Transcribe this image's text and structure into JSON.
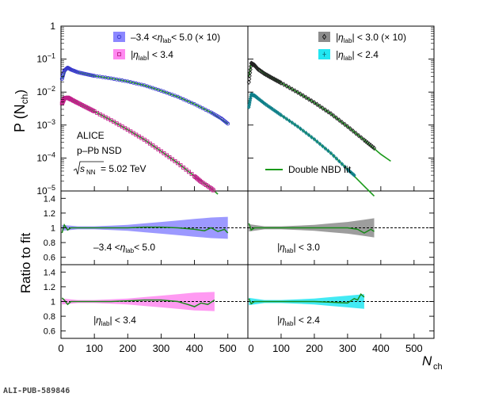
{
  "chart_data": [
    {
      "type": "scatter",
      "panel": "top-left",
      "ylabel": "P (N",
      "ylabel_sub": "ch",
      "yscale": "log",
      "ylim": [
        1e-05,
        1
      ],
      "xlim": [
        0,
        560
      ],
      "annotations": [
        "ALICE",
        "p–Pb NSD",
        "s",
        "NN",
        "= 5.02 TeV"
      ],
      "legend": [
        "–3.4 <",
        "η",
        "lab",
        "< 5.0 (× 10)",
        "|η",
        "lab",
        "| < 3.4"
      ],
      "series": [
        {
          "name": "–3.4 < η_lab < 5.0 (× 10)",
          "color": "#3a3acd",
          "band_color": "#8b87ff",
          "marker": "circle",
          "x": [
            3,
            10,
            20,
            30,
            50,
            75,
            100,
            150,
            200,
            250,
            300,
            350,
            400,
            450,
            480,
            500
          ],
          "y": [
            0.025,
            0.045,
            0.055,
            0.048,
            0.04,
            0.035,
            0.031,
            0.026,
            0.021,
            0.016,
            0.011,
            0.0072,
            0.0043,
            0.0024,
            0.0016,
            0.0011
          ]
        },
        {
          "name": "|η_lab| < 3.4",
          "color": "#c0208a",
          "band_color": "#ff88f0",
          "marker": "square",
          "x": [
            3,
            10,
            20,
            30,
            50,
            75,
            100,
            150,
            200,
            250,
            300,
            350,
            400,
            420,
            450,
            470
          ],
          "y": [
            0.0045,
            0.0065,
            0.0068,
            0.006,
            0.0047,
            0.0035,
            0.0026,
            0.0014,
            0.00072,
            0.00036,
            0.00016,
            7e-05,
            2.8e-05,
            1.9e-05,
            1.2e-05,
            8e-06
          ]
        }
      ],
      "fit": {
        "name": "Double NBD fit",
        "color": "#1a9a1a",
        "series": [
          {
            "x": [
              3,
              20,
              50,
              100,
              150,
              200,
              250,
              300,
              350,
              400,
              450,
              500
            ],
            "y": [
              0.026,
              0.055,
              0.04,
              0.031,
              0.026,
              0.021,
              0.016,
              0.011,
              0.0072,
              0.0043,
              0.0024,
              0.0011
            ]
          },
          {
            "x": [
              3,
              20,
              50,
              100,
              150,
              200,
              250,
              300,
              350,
              400,
              450,
              470
            ],
            "y": [
              0.0046,
              0.0068,
              0.0047,
              0.0026,
              0.0014,
              0.00072,
              0.00036,
              0.00016,
              7e-05,
              2.8e-05,
              1.2e-05,
              8e-06
            ]
          }
        ]
      }
    },
    {
      "type": "scatter",
      "panel": "top-right",
      "yscale": "log",
      "ylim": [
        1e-05,
        1
      ],
      "xlim": [
        0,
        560
      ],
      "legend": [
        "|η",
        "lab",
        "| < 3.0 (× 10)",
        "|η",
        "lab",
        "| < 2.4"
      ],
      "fit_legend": "Double NBD fit",
      "series": [
        {
          "name": "|η_lab| < 3.0 (× 10)",
          "color": "#222222",
          "band_color": "#8c8c8c",
          "marker": "diamond",
          "x": [
            3,
            10,
            20,
            30,
            50,
            75,
            100,
            150,
            200,
            250,
            300,
            350,
            380
          ],
          "y": [
            0.02,
            0.075,
            0.065,
            0.05,
            0.036,
            0.026,
            0.019,
            0.0098,
            0.0048,
            0.0022,
            0.0009,
            0.00035,
            0.0002
          ]
        },
        {
          "name": "|η_lab| < 2.4",
          "color": "#0e7f8a",
          "band_color": "#22e6f2",
          "marker": "cross",
          "x": [
            3,
            10,
            20,
            30,
            50,
            75,
            100,
            150,
            200,
            250,
            300,
            320
          ],
          "y": [
            0.0035,
            0.0085,
            0.0078,
            0.0065,
            0.0045,
            0.003,
            0.002,
            0.0009,
            0.00037,
            0.00014,
            4.5e-05,
            3e-05
          ]
        }
      ],
      "fit": {
        "name": "Double NBD fit",
        "color": "#1a9a1a",
        "series": [
          {
            "x": [
              3,
              10,
              20,
              50,
              100,
              150,
              200,
              250,
              300,
              350,
              400,
              430
            ],
            "y": [
              0.03,
              0.075,
              0.065,
              0.036,
              0.019,
              0.0098,
              0.0048,
              0.0022,
              0.0009,
              0.00035,
              0.00013,
              8e-05
            ]
          },
          {
            "x": [
              3,
              10,
              20,
              50,
              100,
              150,
              200,
              250,
              300,
              350,
              380
            ],
            "y": [
              0.0045,
              0.0085,
              0.0078,
              0.0045,
              0.002,
              0.0009,
              0.00037,
              0.00014,
              4.5e-05,
              1.4e-05,
              7e-06
            ]
          }
        ]
      }
    },
    {
      "type": "line",
      "panel": "ratio-left-top",
      "ylim": [
        0.5,
        1.5
      ],
      "label": [
        "–3.4 <",
        "η",
        "lab",
        "< 5.0"
      ],
      "band": {
        "x": [
          3,
          50,
          100,
          150,
          200,
          250,
          300,
          350,
          400,
          450,
          500
        ],
        "half_width": [
          0.04,
          0.02,
          0.02,
          0.03,
          0.04,
          0.06,
          0.08,
          0.1,
          0.12,
          0.14,
          0.15
        ]
      },
      "ratio": {
        "x": [
          3,
          10,
          20,
          30,
          50,
          100,
          150,
          200,
          250,
          300,
          350,
          400,
          430,
          450,
          470,
          490,
          500
        ],
        "y": [
          0.93,
          1.04,
          0.97,
          1.0,
          1.0,
          1.0,
          1.0,
          1.0,
          1.01,
          1.01,
          1.0,
          0.98,
          0.96,
          1.0,
          0.95,
          0.98,
          0.93
        ]
      }
    },
    {
      "type": "line",
      "panel": "ratio-right-top",
      "ylim": [
        0.5,
        1.5
      ],
      "label": [
        "|η",
        "lab",
        "| < 3.0"
      ],
      "band": {
        "x": [
          3,
          50,
          100,
          150,
          200,
          250,
          300,
          350,
          380
        ],
        "half_width": [
          0.05,
          0.02,
          0.02,
          0.03,
          0.04,
          0.06,
          0.08,
          0.11,
          0.13
        ]
      },
      "ratio": {
        "x": [
          3,
          10,
          20,
          50,
          100,
          150,
          200,
          250,
          300,
          330,
          350,
          370,
          380
        ],
        "y": [
          1.06,
          0.97,
          1.0,
          1.0,
          1.0,
          1.0,
          1.0,
          1.0,
          1.0,
          0.98,
          0.93,
          0.98,
          0.95
        ]
      }
    },
    {
      "type": "line",
      "panel": "ratio-left-bottom",
      "ylim": [
        0.5,
        1.5
      ],
      "label": [
        "|η",
        "lab",
        "| < 3.4"
      ],
      "band": {
        "x": [
          3,
          50,
          100,
          150,
          200,
          250,
          300,
          350,
          400,
          460
        ],
        "half_width": [
          0.04,
          0.02,
          0.02,
          0.03,
          0.04,
          0.06,
          0.08,
          0.1,
          0.12,
          0.13
        ]
      },
      "ratio": {
        "x": [
          3,
          10,
          20,
          30,
          50,
          100,
          150,
          200,
          250,
          300,
          350,
          380,
          400,
          420,
          440,
          460
        ],
        "y": [
          1.05,
          1.02,
          0.96,
          1.0,
          1.0,
          1.0,
          1.0,
          1.01,
          1.02,
          1.02,
          1.0,
          0.96,
          0.93,
          0.98,
          0.96,
          1.02
        ]
      }
    },
    {
      "type": "line",
      "panel": "ratio-right-bottom",
      "ylim": [
        0.5,
        1.5
      ],
      "label": [
        "|η",
        "lab",
        "| < 2.4"
      ],
      "band": {
        "x": [
          3,
          50,
          100,
          150,
          200,
          250,
          300,
          350
        ],
        "half_width": [
          0.05,
          0.02,
          0.02,
          0.03,
          0.04,
          0.06,
          0.08,
          0.1
        ]
      },
      "ratio": {
        "x": [
          3,
          10,
          20,
          50,
          100,
          150,
          200,
          250,
          300,
          320,
          330,
          340,
          350
        ],
        "y": [
          1.04,
          0.97,
          1.0,
          1.0,
          1.0,
          1.0,
          1.0,
          0.99,
          0.98,
          1.04,
          1.02,
          1.1,
          1.06
        ]
      }
    }
  ],
  "axes": {
    "x_ticks": [
      "0",
      "100",
      "200",
      "300",
      "400",
      "500"
    ],
    "x_ticks_right": [
      "0",
      "100",
      "200",
      "300",
      "400",
      "500"
    ],
    "x_label": "N",
    "x_label_sub": "ch",
    "y_ticks_top": [
      "1",
      "10",
      "10",
      "10",
      "10",
      "10"
    ],
    "y_exps_top": [
      "",
      "−1",
      "−2",
      "−3",
      "−4",
      "−5"
    ],
    "ratio_ticks": [
      "1.4",
      "1.2",
      "1",
      "0.8",
      "0.6"
    ],
    "ratio_label": "Ratio to fit"
  },
  "footer": "ALI-PUB-589846"
}
